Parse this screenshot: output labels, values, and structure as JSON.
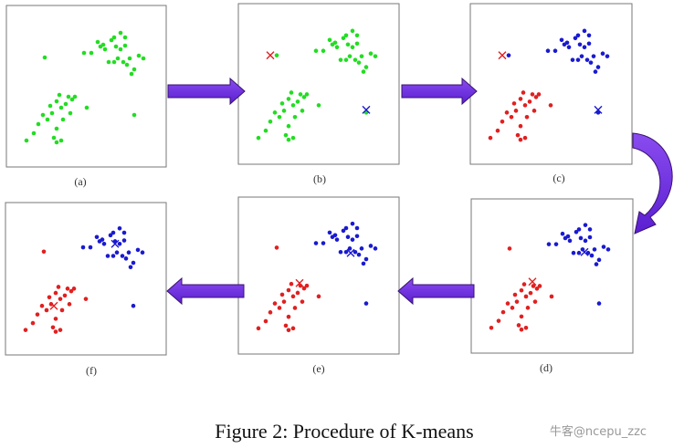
{
  "figure": {
    "panels": [
      {
        "label": "(a)"
      },
      {
        "label": "(b)"
      },
      {
        "label": "(c)"
      },
      {
        "label": "(d)"
      },
      {
        "label": "(e)"
      },
      {
        "label": "(f)"
      }
    ],
    "caption": "Figure 2: Procedure of K-means",
    "watermark": "牛客@ncepu_zzc"
  }
}
